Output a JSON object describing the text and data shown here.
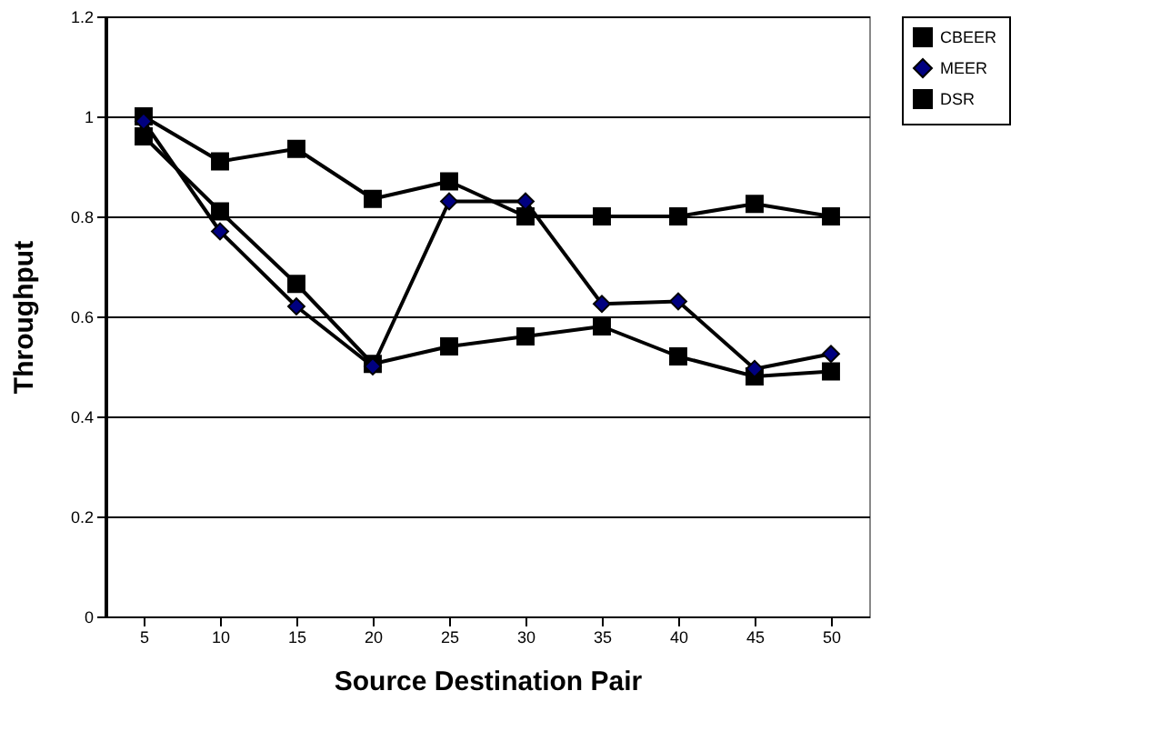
{
  "chart_data": {
    "type": "line",
    "xlabel": "Source Destination Pair",
    "ylabel": "Throughput",
    "categories": [
      "5",
      "10",
      "15",
      "20",
      "25",
      "30",
      "35",
      "40",
      "45",
      "50"
    ],
    "series": [
      {
        "name": "CBEER",
        "color": "#000000",
        "marker": "square",
        "values": [
          1.0,
          0.91,
          0.935,
          0.835,
          0.87,
          0.8,
          0.8,
          0.8,
          0.825,
          0.8
        ]
      },
      {
        "name": "MEER",
        "color": "#000080",
        "marker": "diamond",
        "values": [
          0.99,
          0.77,
          0.62,
          0.5,
          0.83,
          0.83,
          0.625,
          0.63,
          0.495,
          0.525
        ]
      },
      {
        "name": "DSR",
        "color": "#000000",
        "marker": "square",
        "values": [
          0.96,
          0.81,
          0.665,
          0.505,
          0.54,
          0.56,
          0.58,
          0.52,
          0.48,
          0.49
        ]
      }
    ],
    "ylim": [
      0,
      1.2
    ],
    "yticks": [
      0,
      0.2,
      0.4,
      0.6,
      0.8,
      1,
      1.2
    ],
    "grid": "y",
    "legend": "right",
    "line_style": "solid"
  }
}
